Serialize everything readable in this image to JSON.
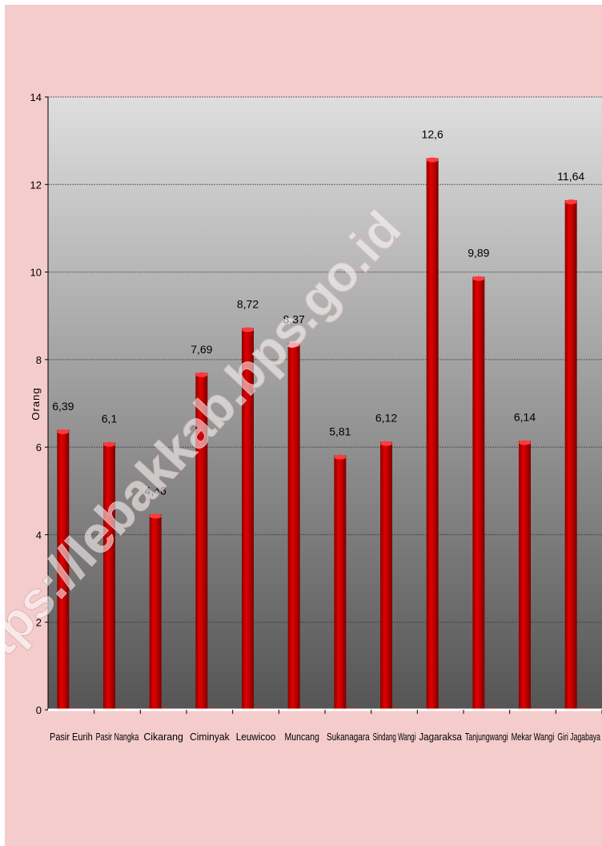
{
  "watermark": "https://lebakkab.bps.go.id",
  "colors": {
    "background": "#f4cccc",
    "plot_top": "#dedede",
    "plot_bottom": "#555555",
    "bar": "#cc0000",
    "bar_highlight": "#ff3b3b",
    "bar_shadow": "#880000"
  },
  "chart_data": {
    "type": "bar",
    "title": "",
    "xlabel": "",
    "ylabel": "Orang",
    "ylim": [
      0,
      14
    ],
    "yticks": [
      0,
      2,
      4,
      6,
      8,
      10,
      12,
      14
    ],
    "grid": true,
    "legend": "none",
    "categories": [
      "Pasir Eurih",
      "Pasir Nangka",
      "Cikarang",
      "Ciminyak",
      "Leuwicoo",
      "Muncang",
      "Sukanagara",
      "Sindang Wangi",
      "Jagaraksa",
      "Tanjungwangi",
      "Mekar Wangi",
      "Giri Jagabaya"
    ],
    "values": [
      6.39,
      6.1,
      4.46,
      7.69,
      8.72,
      8.37,
      5.81,
      6.12,
      12.6,
      9.89,
      6.14,
      11.64
    ],
    "data_labels": [
      "6,39",
      "6,1",
      "4,46",
      "7,69",
      "8,72",
      "8,37",
      "5,81",
      "6,12",
      "12,6",
      "9,89",
      "6,14",
      "11,64"
    ]
  }
}
